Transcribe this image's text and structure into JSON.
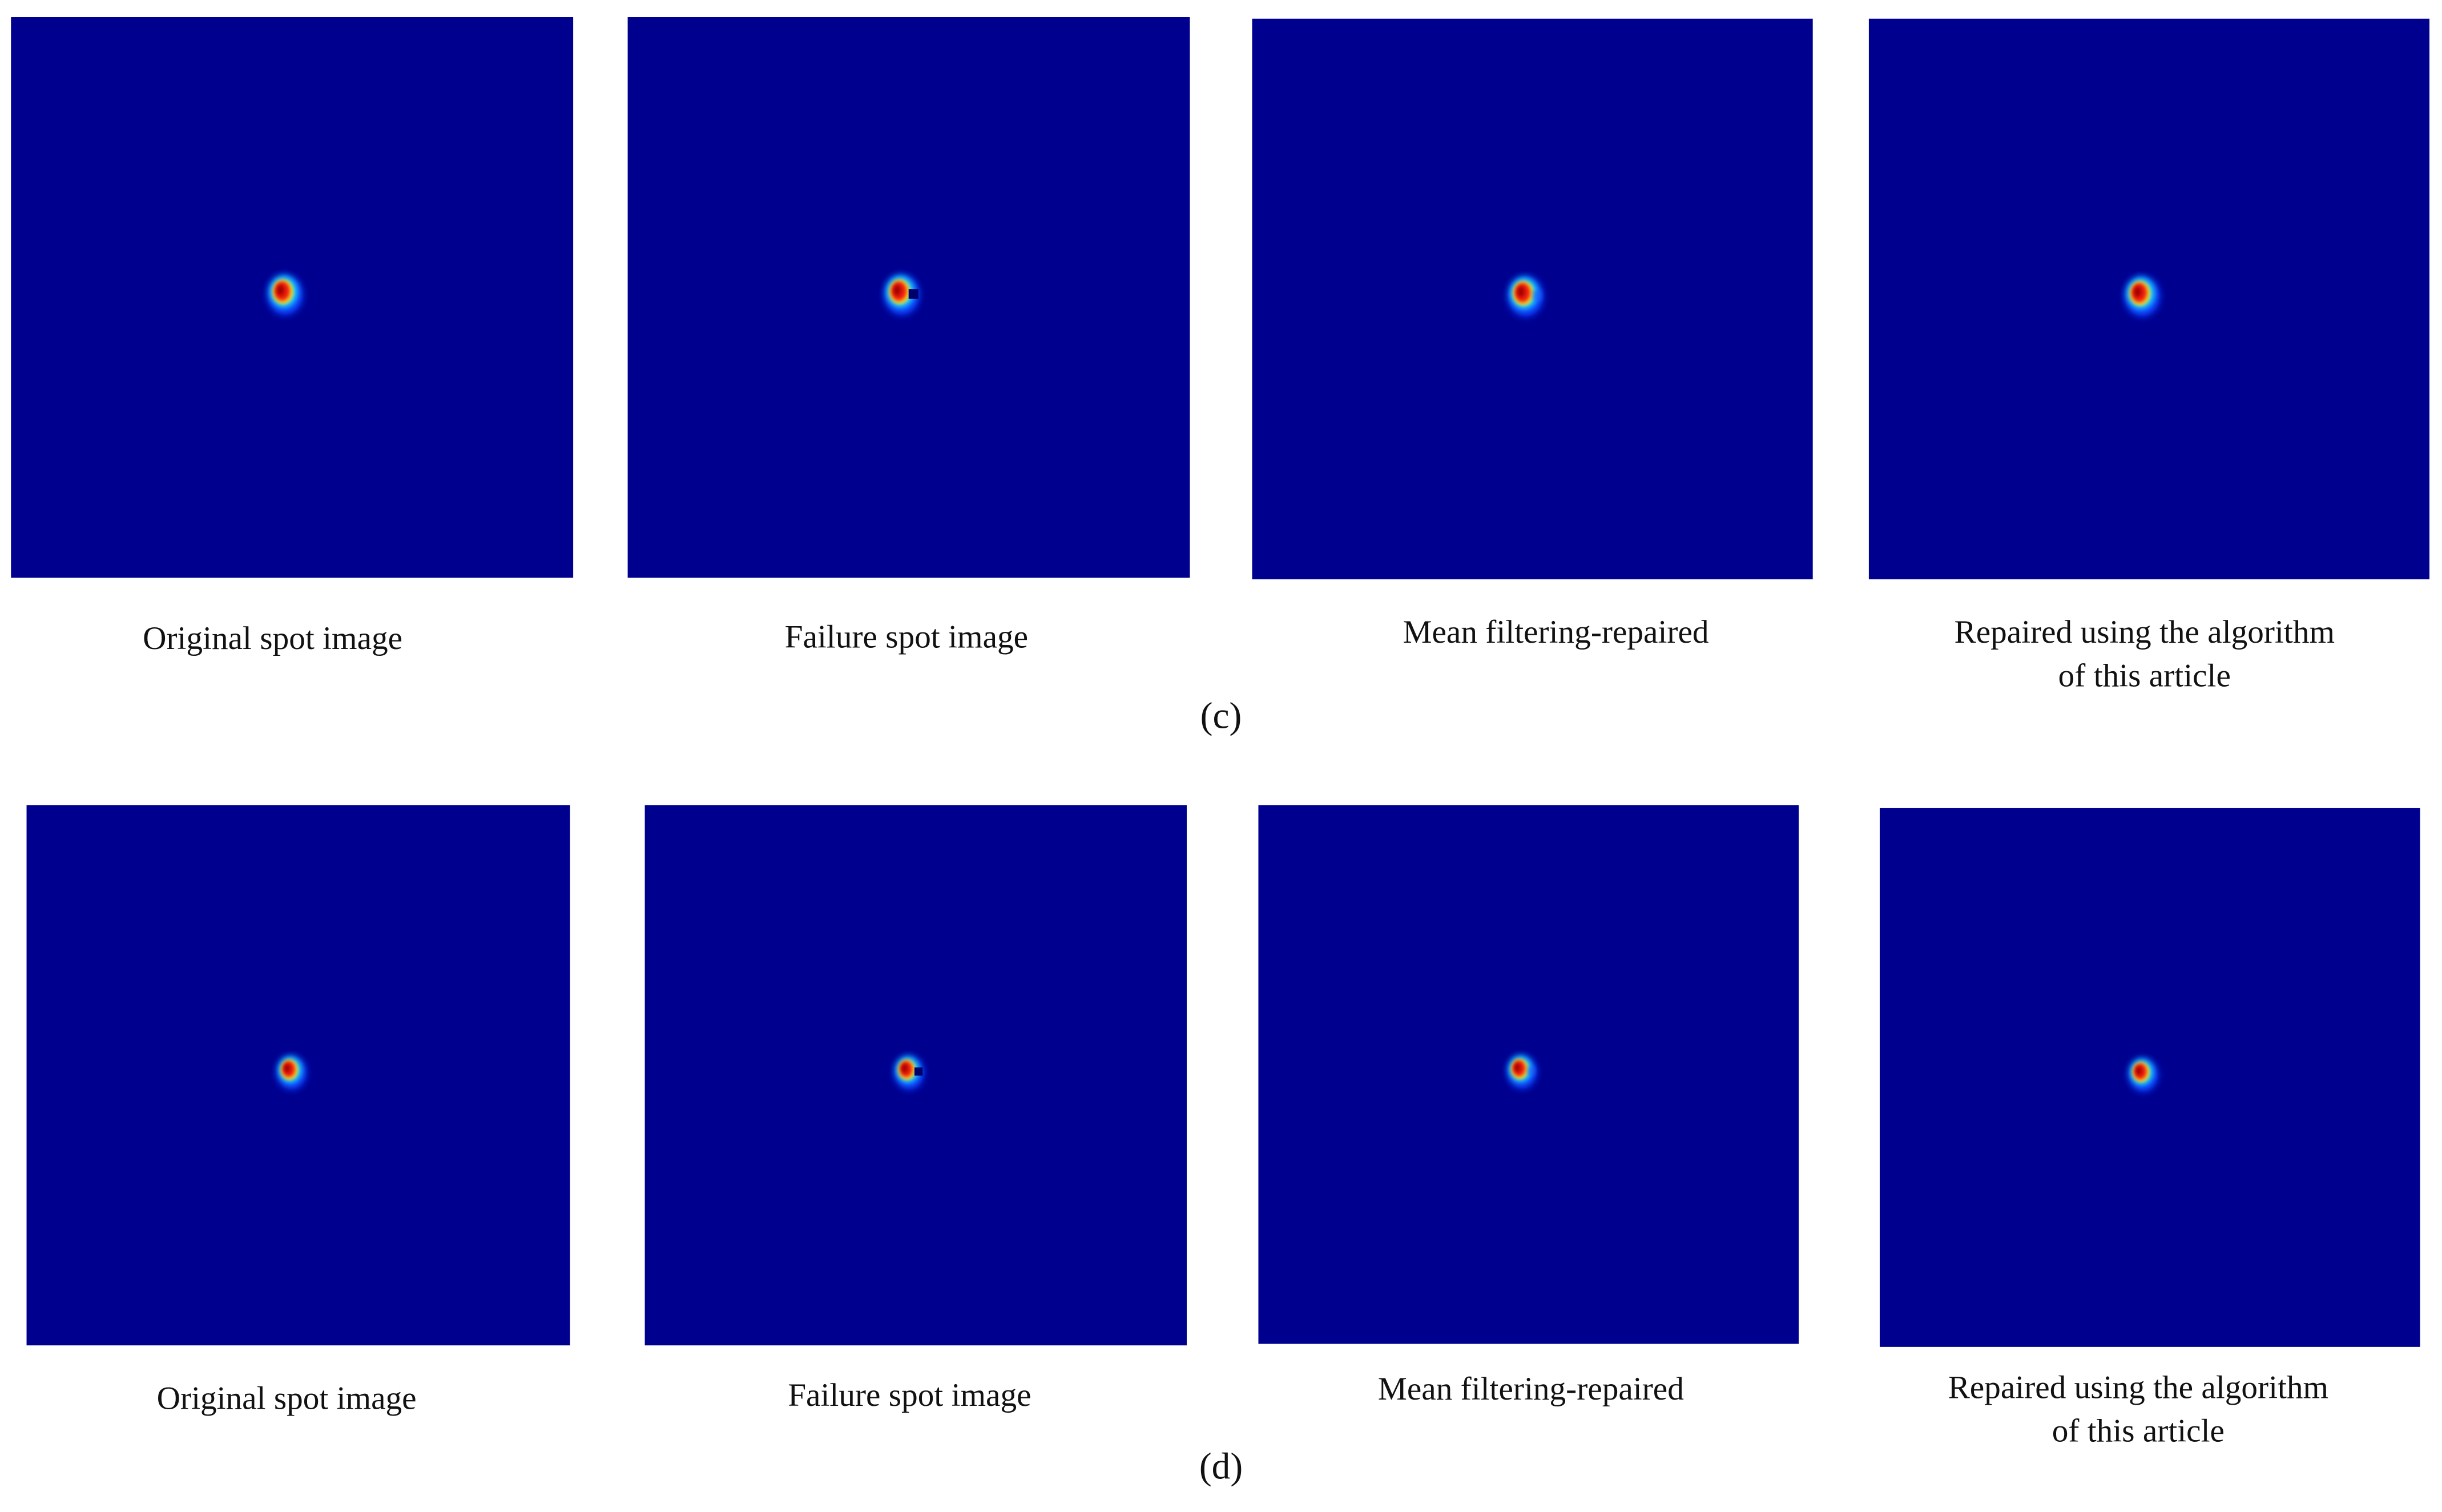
{
  "panels": [
    {
      "label": "(c)",
      "images": [
        {
          "caption": [
            "Original spot image"
          ]
        },
        {
          "caption": [
            "Failure spot image"
          ]
        },
        {
          "caption": [
            "Mean filtering-repaired"
          ]
        },
        {
          "caption": [
            "Repaired using the algorithm",
            "of this article"
          ]
        }
      ]
    },
    {
      "label": "(d)",
      "images": [
        {
          "caption": [
            "Original spot image"
          ]
        },
        {
          "caption": [
            "Failure spot image"
          ]
        },
        {
          "caption": [
            "Mean filtering-repaired"
          ]
        },
        {
          "caption": [
            "Repaired using the algorithm",
            "of this article"
          ]
        }
      ]
    }
  ]
}
